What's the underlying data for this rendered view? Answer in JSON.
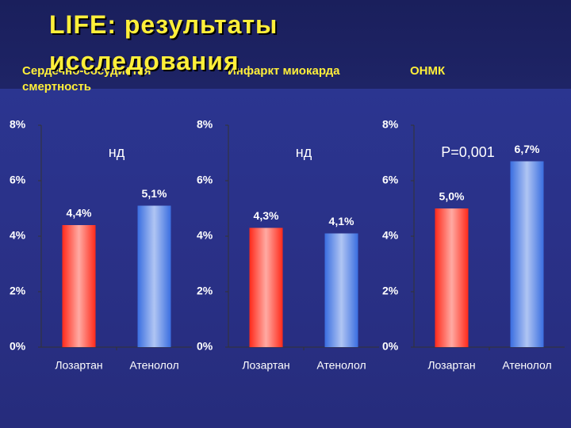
{
  "title": "LIFE: результаты исследования",
  "chart_data": [
    {
      "type": "bar",
      "title": "Сердечно-сосудистая смертность",
      "annotation": "нд",
      "categories": [
        "Лозартан",
        "Атенолол"
      ],
      "values": [
        4.4,
        5.1
      ],
      "value_labels": [
        "4,4%",
        "5,1%"
      ],
      "colors": [
        "#ff2a1a",
        "#3a6ee0"
      ],
      "ylim": [
        0,
        8
      ],
      "yticks": [
        {
          "value": 0,
          "label": "0%"
        },
        {
          "value": 2,
          "label": "2%"
        },
        {
          "value": 4,
          "label": "4%"
        },
        {
          "value": 6,
          "label": "6%"
        },
        {
          "value": 8,
          "label": "8%"
        }
      ]
    },
    {
      "type": "bar",
      "title": "Инфаркт миокарда",
      "annotation": "нд",
      "categories": [
        "Лозартан",
        "Атенолол"
      ],
      "values": [
        4.3,
        4.1
      ],
      "value_labels": [
        "4,3%",
        "4,1%"
      ],
      "colors": [
        "#ff2a1a",
        "#3a6ee0"
      ],
      "ylim": [
        0,
        8
      ],
      "yticks": [
        {
          "value": 0,
          "label": "0%"
        },
        {
          "value": 2,
          "label": "2%"
        },
        {
          "value": 4,
          "label": "4%"
        },
        {
          "value": 6,
          "label": "6%"
        },
        {
          "value": 8,
          "label": "8%"
        }
      ]
    },
    {
      "type": "bar",
      "title": "ОНМК",
      "annotation": "P=0,001",
      "categories": [
        "Лозартан",
        "Атенолол"
      ],
      "values": [
        5.0,
        6.7
      ],
      "value_labels": [
        "5,0%",
        "6,7%"
      ],
      "colors": [
        "#ff2a1a",
        "#3a6ee0"
      ],
      "ylim": [
        0,
        8
      ],
      "yticks": [
        {
          "value": 0,
          "label": "0%"
        },
        {
          "value": 2,
          "label": "2%"
        },
        {
          "value": 4,
          "label": "4%"
        },
        {
          "value": 6,
          "label": "6%"
        },
        {
          "value": 8,
          "label": "8%"
        }
      ]
    }
  ]
}
